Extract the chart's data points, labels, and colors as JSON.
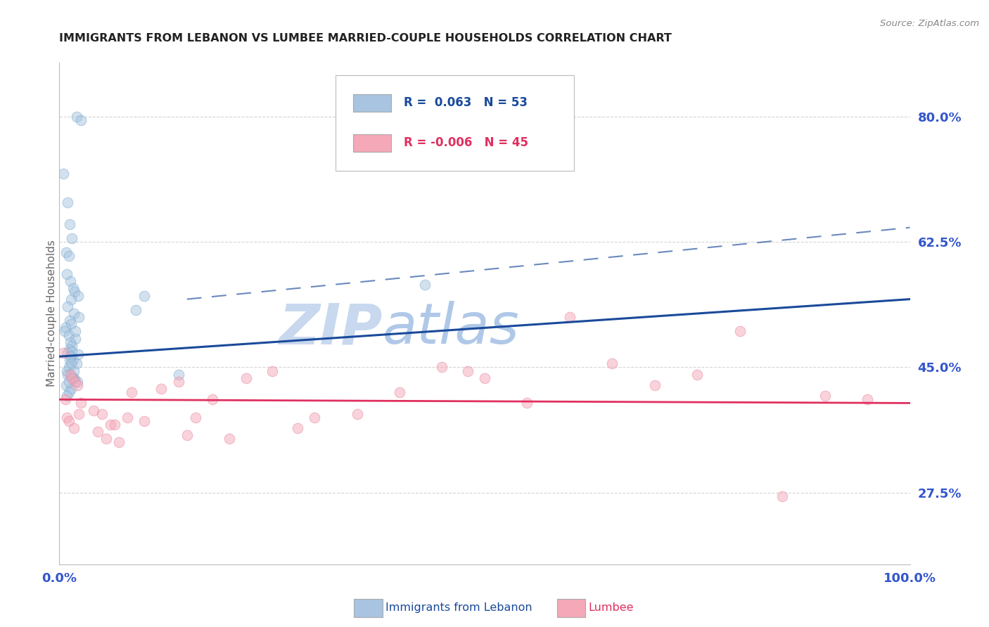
{
  "title": "IMMIGRANTS FROM LEBANON VS LUMBEE MARRIED-COUPLE HOUSEHOLDS CORRELATION CHART",
  "source": "Source: ZipAtlas.com",
  "xlabel_blue": "Immigrants from Lebanon",
  "xlabel_pink": "Lumbee",
  "ylabel": "Married-couple Households",
  "xlim": [
    0.0,
    100.0
  ],
  "ylim": [
    17.5,
    87.5
  ],
  "yticks": [
    27.5,
    45.0,
    62.5,
    80.0
  ],
  "xticks": [
    0.0,
    100.0
  ],
  "R_blue": 0.063,
  "N_blue": 53,
  "R_pink": -0.006,
  "N_pink": 45,
  "blue_scatter_x": [
    2.0,
    2.5,
    0.5,
    1.0,
    1.2,
    1.5,
    0.8,
    1.1,
    0.9,
    1.3,
    1.6,
    1.8,
    2.2,
    1.4,
    1.0,
    1.7,
    2.3,
    1.2,
    1.4,
    0.7,
    0.6,
    1.1,
    1.9,
    1.3,
    1.5,
    1.2,
    1.0,
    1.4,
    1.6,
    2.0,
    1.1,
    0.9,
    1.3,
    1.7,
    2.1,
    0.8,
    1.4,
    1.1,
    2.2,
    1.5,
    1.3,
    1.0,
    1.6,
    1.9,
    1.2,
    1.4,
    1.7,
    1.1,
    0.9,
    9.0,
    10.0,
    14.0,
    43.0
  ],
  "blue_scatter_y": [
    80.0,
    79.5,
    72.0,
    68.0,
    65.0,
    63.0,
    61.0,
    60.5,
    58.0,
    57.0,
    56.0,
    55.5,
    55.0,
    54.5,
    53.5,
    52.5,
    52.0,
    51.5,
    51.0,
    50.5,
    50.0,
    49.5,
    49.0,
    48.5,
    48.0,
    47.5,
    47.0,
    46.5,
    46.0,
    45.5,
    45.0,
    44.5,
    44.0,
    43.5,
    43.0,
    42.5,
    42.0,
    41.5,
    46.8,
    47.2,
    46.5,
    44.0,
    43.5,
    50.0,
    46.0,
    45.5,
    44.5,
    43.0,
    41.0,
    53.0,
    55.0,
    44.0,
    56.5
  ],
  "pink_scatter_x": [
    0.5,
    0.7,
    0.9,
    1.1,
    1.3,
    1.5,
    1.7,
    1.9,
    2.1,
    2.3,
    2.5,
    4.0,
    4.5,
    5.0,
    5.5,
    6.0,
    7.0,
    8.0,
    10.0,
    12.0,
    14.0,
    15.0,
    16.0,
    18.0,
    20.0,
    22.0,
    28.0,
    30.0,
    35.0,
    40.0,
    55.0,
    60.0,
    65.0,
    70.0,
    75.0,
    80.0,
    85.0,
    90.0,
    95.0,
    6.5,
    8.5,
    48.0,
    25.0,
    45.0,
    50.0
  ],
  "pink_scatter_y": [
    47.0,
    40.5,
    38.0,
    37.5,
    44.0,
    43.5,
    36.5,
    43.0,
    42.5,
    38.5,
    40.0,
    39.0,
    36.0,
    38.5,
    35.0,
    37.0,
    34.5,
    38.0,
    37.5,
    42.0,
    43.0,
    35.5,
    38.0,
    40.5,
    35.0,
    43.5,
    36.5,
    38.0,
    38.5,
    41.5,
    40.0,
    52.0,
    45.5,
    42.5,
    44.0,
    50.0,
    27.0,
    41.0,
    40.5,
    37.0,
    41.5,
    44.5,
    44.5,
    45.0,
    43.5
  ],
  "blue_color": "#a8c4e0",
  "pink_color": "#f4a8b8",
  "blue_edge_color": "#7aaad0",
  "pink_edge_color": "#e888a0",
  "blue_line_color": "#1a4a9a",
  "pink_line_color": "#e03060",
  "title_color": "#222222",
  "tick_label_color": "#3355cc",
  "source_color": "#888888",
  "grid_color": "#cccccc",
  "background_color": "#ffffff",
  "watermark_text": "ZIP",
  "watermark_text2": "atlas",
  "watermark_color1": "#c8d8ee",
  "watermark_color2": "#b0c8e8",
  "blue_regression_x0": 0.0,
  "blue_regression_y0": 46.5,
  "blue_regression_x1": 100.0,
  "blue_regression_y1": 54.5,
  "pink_regression_x0": 0.0,
  "pink_regression_y0": 40.5,
  "pink_regression_x1": 100.0,
  "pink_regression_y1": 40.0,
  "blue_dashed_x0": 15.0,
  "blue_dashed_y0": 54.5,
  "blue_dashed_x1": 100.0,
  "blue_dashed_y1": 64.5,
  "marker_size": 110,
  "marker_alpha": 0.5,
  "marker_linewidth": 0.8
}
